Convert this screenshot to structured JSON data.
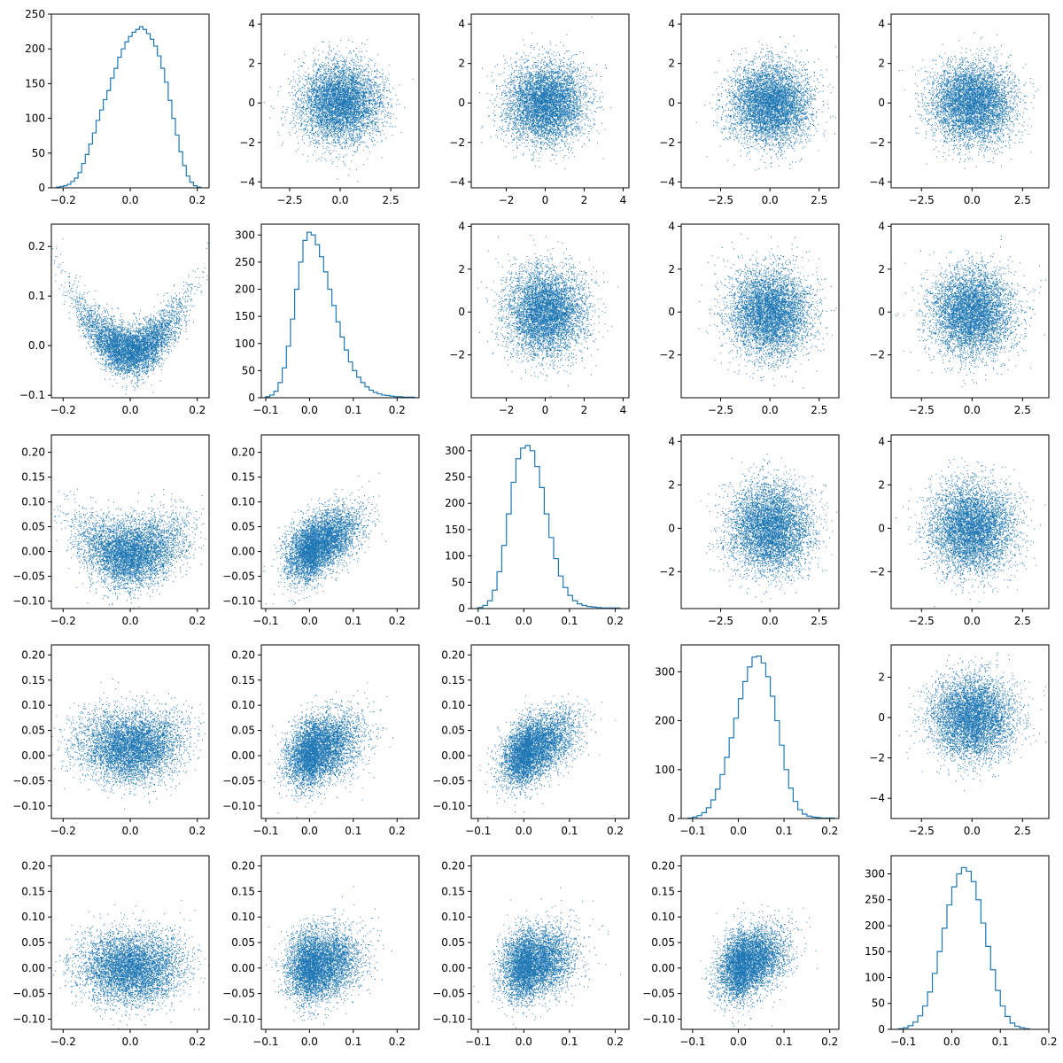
{
  "figure": {
    "rows": 5,
    "cols": 5,
    "color": "#1f77b4",
    "axis_color": "#000000"
  },
  "chart_data": [
    {
      "type": "histogram",
      "row": 0,
      "col": 0,
      "xlim": [
        -0.235,
        0.235
      ],
      "ylim": [
        0,
        250
      ],
      "x_ticks": [
        -0.2,
        0.0,
        0.2
      ],
      "x_tick_labels": [
        "−0.2",
        "0.0",
        "0.2"
      ],
      "y_ticks": [
        0,
        50,
        100,
        150,
        200,
        250
      ],
      "y_tick_labels": [
        "0",
        "50",
        "100",
        "150",
        "200",
        "250"
      ],
      "bins": {
        "x_start": -0.22,
        "x_end": 0.21,
        "counts": [
          1,
          2,
          3,
          5,
          9,
          14,
          22,
          35,
          48,
          63,
          79,
          97,
          112,
          127,
          140,
          158,
          172,
          188,
          200,
          210,
          218,
          224,
          228,
          232,
          228,
          222,
          214,
          204,
          190,
          172,
          152,
          126,
          100,
          76,
          52,
          32,
          17,
          8,
          3,
          1
        ]
      }
    },
    {
      "type": "scatter",
      "row": 0,
      "col": 1,
      "xlim": [
        -3.9,
        3.9
      ],
      "ylim": [
        -4.3,
        4.5
      ],
      "dist": "normal",
      "sx": 1.0,
      "sy": 1.0,
      "n": 5500,
      "x_ticks": [
        -2.5,
        0.0,
        2.5
      ],
      "x_tick_labels": [
        "−2.5",
        "0.0",
        "2.5"
      ],
      "y_ticks": [
        -4,
        -2,
        0,
        2,
        4
      ],
      "y_tick_labels": [
        "−4",
        "−2",
        "0",
        "2",
        "4"
      ]
    },
    {
      "type": "scatter",
      "row": 0,
      "col": 2,
      "xlim": [
        -3.8,
        4.3
      ],
      "ylim": [
        -4.3,
        4.5
      ],
      "dist": "normal",
      "sx": 1.0,
      "sy": 1.0,
      "n": 5500,
      "x_ticks": [
        -2,
        0,
        2,
        4
      ],
      "x_tick_labels": [
        "−2",
        "0",
        "2",
        "4"
      ],
      "y_ticks": [
        -4,
        -2,
        0,
        2,
        4
      ],
      "y_tick_labels": [
        "−4",
        "−2",
        "0",
        "2",
        "4"
      ]
    },
    {
      "type": "scatter",
      "row": 0,
      "col": 3,
      "xlim": [
        -4.5,
        3.5
      ],
      "ylim": [
        -4.3,
        4.5
      ],
      "dist": "normal",
      "sx": 1.0,
      "sy": 1.0,
      "n": 5500,
      "x_ticks": [
        -2.5,
        0.0,
        2.5
      ],
      "x_tick_labels": [
        "−2.5",
        "0.0",
        "2.5"
      ],
      "y_ticks": [
        -4,
        -2,
        0,
        2,
        4
      ],
      "y_tick_labels": [
        "−4",
        "−2",
        "0",
        "2",
        "4"
      ]
    },
    {
      "type": "scatter",
      "row": 0,
      "col": 4,
      "xlim": [
        -4.0,
        3.8
      ],
      "ylim": [
        -4.3,
        4.5
      ],
      "dist": "normal",
      "sx": 1.0,
      "sy": 1.0,
      "n": 5500,
      "x_ticks": [
        -2.5,
        0.0,
        2.5
      ],
      "x_tick_labels": [
        "−2.5",
        "0.0",
        "2.5"
      ],
      "y_ticks": [
        -4,
        -2,
        0,
        2,
        4
      ],
      "y_tick_labels": [
        "−4",
        "−2",
        "0",
        "2",
        "4"
      ]
    },
    {
      "type": "scatter",
      "row": 1,
      "col": 0,
      "xlim": [
        -0.235,
        0.235
      ],
      "ylim": [
        -0.105,
        0.245
      ],
      "dist": "parabola",
      "sx": 0.075,
      "a": 3.6,
      "c": -0.01,
      "noise": 0.025,
      "n": 5500,
      "x_ticks": [
        -0.2,
        0.0,
        0.2
      ],
      "x_tick_labels": [
        "−0.2",
        "0.0",
        "0.2"
      ],
      "y_ticks": [
        -0.1,
        0.0,
        0.1,
        0.2
      ],
      "y_tick_labels": [
        "−0.1",
        "0.0",
        "0.1",
        "0.2"
      ]
    },
    {
      "type": "histogram",
      "row": 1,
      "col": 1,
      "xlim": [
        -0.11,
        0.25
      ],
      "ylim": [
        0,
        320
      ],
      "x_ticks": [
        -0.1,
        0.0,
        0.1,
        0.2
      ],
      "x_tick_labels": [
        "−0.1",
        "0.0",
        "0.1",
        "0.2"
      ],
      "y_ticks": [
        0,
        50,
        100,
        150,
        200,
        250,
        300
      ],
      "y_tick_labels": [
        "0",
        "50",
        "100",
        "150",
        "200",
        "250",
        "300"
      ],
      "bins": {
        "x_start": -0.1,
        "x_end": 0.24,
        "counts": [
          2,
          5,
          12,
          28,
          55,
          95,
          145,
          200,
          250,
          290,
          305,
          300,
          282,
          260,
          232,
          200,
          170,
          140,
          112,
          88,
          66,
          50,
          38,
          28,
          20,
          14,
          10,
          7,
          5,
          4,
          3,
          2,
          2,
          1,
          1,
          1
        ]
      }
    },
    {
      "type": "scatter",
      "row": 1,
      "col": 2,
      "xlim": [
        -3.8,
        4.3
      ],
      "ylim": [
        -4.0,
        4.1
      ],
      "dist": "normal",
      "sx": 1.0,
      "sy": 1.0,
      "n": 5500,
      "x_ticks": [
        -2,
        0,
        2,
        4
      ],
      "x_tick_labels": [
        "−2",
        "0",
        "2",
        "4"
      ],
      "y_ticks": [
        -2,
        0,
        2,
        4
      ],
      "y_tick_labels": [
        "−2",
        "0",
        "2",
        "4"
      ]
    },
    {
      "type": "scatter",
      "row": 1,
      "col": 3,
      "xlim": [
        -4.5,
        3.5
      ],
      "ylim": [
        -4.0,
        4.1
      ],
      "dist": "normal",
      "sx": 1.0,
      "sy": 1.0,
      "n": 5500,
      "x_ticks": [
        -2.5,
        0.0,
        2.5
      ],
      "x_tick_labels": [
        "−2.5",
        "0.0",
        "2.5"
      ],
      "y_ticks": [
        -2,
        0,
        2,
        4
      ],
      "y_tick_labels": [
        "−2",
        "0",
        "2",
        "4"
      ]
    },
    {
      "type": "scatter",
      "row": 1,
      "col": 4,
      "xlim": [
        -4.0,
        3.8
      ],
      "ylim": [
        -4.0,
        4.1
      ],
      "dist": "normal",
      "sx": 1.0,
      "sy": 1.0,
      "n": 5500,
      "x_ticks": [
        -2.5,
        0.0,
        2.5
      ],
      "x_tick_labels": [
        "−2.5",
        "0.0",
        "2.5"
      ],
      "y_ticks": [
        -2,
        0,
        2,
        4
      ],
      "y_tick_labels": [
        "−2",
        "0",
        "2",
        "4"
      ]
    },
    {
      "type": "scatter",
      "row": 2,
      "col": 0,
      "xlim": [
        -0.235,
        0.235
      ],
      "ylim": [
        -0.115,
        0.235
      ],
      "dist": "parabola",
      "sx": 0.075,
      "a": 1.5,
      "c": -0.005,
      "noise": 0.033,
      "n": 5500,
      "x_ticks": [
        -0.2,
        0.0,
        0.2
      ],
      "x_tick_labels": [
        "−0.2",
        "0.0",
        "0.2"
      ],
      "y_ticks": [
        -0.1,
        -0.05,
        0.0,
        0.05,
        0.1,
        0.15,
        0.2
      ],
      "y_tick_labels": [
        "−0.10",
        "−0.05",
        "0.00",
        "0.05",
        "0.10",
        "0.15",
        "0.20"
      ]
    },
    {
      "type": "scatter",
      "row": 2,
      "col": 1,
      "xlim": [
        -0.11,
        0.25
      ],
      "ylim": [
        -0.115,
        0.235
      ],
      "dist": "skew",
      "sx": 0.04,
      "corr": 0.45,
      "noise": 0.03,
      "n": 5500,
      "x_ticks": [
        -0.1,
        0.0,
        0.1,
        0.2
      ],
      "x_tick_labels": [
        "−0.1",
        "0.0",
        "0.1",
        "0.2"
      ],
      "y_ticks": [
        -0.1,
        -0.05,
        0.0,
        0.05,
        0.1,
        0.15,
        0.2
      ],
      "y_tick_labels": [
        "−0.10",
        "−0.05",
        "0.00",
        "0.05",
        "0.10",
        "0.15",
        "0.20"
      ]
    },
    {
      "type": "histogram",
      "row": 2,
      "col": 2,
      "xlim": [
        -0.115,
        0.23
      ],
      "ylim": [
        0,
        330
      ],
      "x_ticks": [
        -0.1,
        0.0,
        0.1,
        0.2
      ],
      "x_tick_labels": [
        "−0.1",
        "0.0",
        "0.1",
        "0.2"
      ],
      "y_ticks": [
        0,
        50,
        100,
        150,
        200,
        250,
        300
      ],
      "y_tick_labels": [
        "0",
        "50",
        "100",
        "150",
        "200",
        "250",
        "300"
      ],
      "bins": {
        "x_start": -0.1,
        "x_end": 0.21,
        "counts": [
          2,
          6,
          15,
          35,
          70,
          120,
          180,
          240,
          285,
          305,
          310,
          300,
          270,
          230,
          180,
          135,
          95,
          62,
          40,
          25,
          15,
          9,
          6,
          4,
          3,
          2,
          1,
          1,
          1,
          1
        ]
      }
    },
    {
      "type": "scatter",
      "row": 2,
      "col": 3,
      "xlim": [
        -4.5,
        3.5
      ],
      "ylim": [
        -3.7,
        4.3
      ],
      "dist": "normal",
      "sx": 1.0,
      "sy": 1.0,
      "n": 5500,
      "x_ticks": [
        -2.5,
        0.0,
        2.5
      ],
      "x_tick_labels": [
        "−2.5",
        "0.0",
        "2.5"
      ],
      "y_ticks": [
        -2,
        0,
        2,
        4
      ],
      "y_tick_labels": [
        "−2",
        "0",
        "2",
        "4"
      ]
    },
    {
      "type": "scatter",
      "row": 2,
      "col": 4,
      "xlim": [
        -4.0,
        3.8
      ],
      "ylim": [
        -3.7,
        4.3
      ],
      "dist": "normal",
      "sx": 1.0,
      "sy": 1.0,
      "n": 5500,
      "x_ticks": [
        -2.5,
        0.0,
        2.5
      ],
      "x_tick_labels": [
        "−2.5",
        "0.0",
        "2.5"
      ],
      "y_ticks": [
        -2,
        0,
        2,
        4
      ],
      "y_tick_labels": [
        "−2",
        "0",
        "2",
        "4"
      ]
    },
    {
      "type": "scatter",
      "row": 3,
      "col": 0,
      "xlim": [
        -0.235,
        0.235
      ],
      "ylim": [
        -0.125,
        0.22
      ],
      "dist": "parabola",
      "sx": 0.075,
      "a": 0.6,
      "c": 0.015,
      "noise": 0.035,
      "n": 5500,
      "x_ticks": [
        -0.2,
        0.0,
        0.2
      ],
      "x_tick_labels": [
        "−0.2",
        "0.0",
        "0.2"
      ],
      "y_ticks": [
        -0.1,
        -0.05,
        0.0,
        0.05,
        0.1,
        0.15,
        0.2
      ],
      "y_tick_labels": [
        "−0.10",
        "−0.05",
        "0.00",
        "0.05",
        "0.10",
        "0.15",
        "0.20"
      ]
    },
    {
      "type": "scatter",
      "row": 3,
      "col": 1,
      "xlim": [
        -0.11,
        0.25
      ],
      "ylim": [
        -0.125,
        0.22
      ],
      "dist": "skew",
      "sx": 0.04,
      "corr": 0.3,
      "noise": 0.032,
      "n": 5500,
      "x_ticks": [
        -0.1,
        0.0,
        0.1,
        0.2
      ],
      "x_tick_labels": [
        "−0.1",
        "0.0",
        "0.1",
        "0.2"
      ],
      "y_ticks": [
        -0.1,
        -0.05,
        0.0,
        0.05,
        0.1,
        0.15,
        0.2
      ],
      "y_tick_labels": [
        "−0.10",
        "−0.05",
        "0.00",
        "0.05",
        "0.10",
        "0.15",
        "0.20"
      ]
    },
    {
      "type": "scatter",
      "row": 3,
      "col": 2,
      "xlim": [
        -0.115,
        0.23
      ],
      "ylim": [
        -0.125,
        0.22
      ],
      "dist": "skew",
      "sx": 0.038,
      "corr": 0.45,
      "noise": 0.03,
      "n": 5500,
      "x_ticks": [
        -0.1,
        0.0,
        0.1,
        0.2
      ],
      "x_tick_labels": [
        "−0.1",
        "0.0",
        "0.1",
        "0.2"
      ],
      "y_ticks": [
        -0.1,
        -0.05,
        0.0,
        0.05,
        0.1,
        0.15,
        0.2
      ],
      "y_tick_labels": [
        "−0.10",
        "−0.05",
        "0.00",
        "0.05",
        "0.10",
        "0.15",
        "0.20"
      ]
    },
    {
      "type": "histogram",
      "row": 3,
      "col": 3,
      "xlim": [
        -0.125,
        0.22
      ],
      "ylim": [
        0,
        355
      ],
      "x_ticks": [
        -0.1,
        0.0,
        0.1,
        0.2
      ],
      "x_tick_labels": [
        "−0.1",
        "0.0",
        "0.1",
        "0.2"
      ],
      "y_ticks": [
        0,
        100,
        200,
        300
      ],
      "y_tick_labels": [
        "0",
        "100",
        "200",
        "300"
      ],
      "bins": {
        "x_start": -0.11,
        "x_end": 0.21,
        "counts": [
          1,
          3,
          6,
          12,
          22,
          38,
          60,
          90,
          125,
          165,
          205,
          245,
          280,
          310,
          330,
          332,
          318,
          290,
          250,
          200,
          150,
          100,
          62,
          35,
          18,
          9,
          5,
          3,
          2,
          1,
          1,
          1
        ]
      }
    },
    {
      "type": "scatter",
      "row": 3,
      "col": 4,
      "xlim": [
        -4.0,
        3.8
      ],
      "ylim": [
        -5.0,
        3.6
      ],
      "dist": "normal",
      "sx": 1.0,
      "sy": 1.0,
      "n": 5500,
      "x_ticks": [
        -2.5,
        0.0,
        2.5
      ],
      "x_tick_labels": [
        "−2.5",
        "0.0",
        "2.5"
      ],
      "y_ticks": [
        -4,
        -2,
        0,
        2
      ],
      "y_tick_labels": [
        "−4",
        "−2",
        "0",
        "2"
      ]
    },
    {
      "type": "scatter",
      "row": 4,
      "col": 0,
      "xlim": [
        -0.235,
        0.235
      ],
      "ylim": [
        -0.12,
        0.22
      ],
      "dist": "parabola",
      "sx": 0.075,
      "a": 0.3,
      "c": 0.0,
      "noise": 0.033,
      "n": 5500,
      "x_ticks": [
        -0.2,
        0.0,
        0.2
      ],
      "x_tick_labels": [
        "−0.2",
        "0.0",
        "0.2"
      ],
      "y_ticks": [
        -0.1,
        -0.05,
        0.0,
        0.05,
        0.1,
        0.15,
        0.2
      ],
      "y_tick_labels": [
        "−0.10",
        "−0.05",
        "0.00",
        "0.05",
        "0.10",
        "0.15",
        "0.20"
      ]
    },
    {
      "type": "scatter",
      "row": 4,
      "col": 1,
      "xlim": [
        -0.11,
        0.25
      ],
      "ylim": [
        -0.12,
        0.22
      ],
      "dist": "skew",
      "sx": 0.04,
      "corr": 0.15,
      "noise": 0.033,
      "n": 5500,
      "x_ticks": [
        -0.1,
        0.0,
        0.1,
        0.2
      ],
      "x_tick_labels": [
        "−0.1",
        "0.0",
        "0.1",
        "0.2"
      ],
      "y_ticks": [
        -0.1,
        -0.05,
        0.0,
        0.05,
        0.1,
        0.15,
        0.2
      ],
      "y_tick_labels": [
        "−0.10",
        "−0.05",
        "0.00",
        "0.05",
        "0.10",
        "0.15",
        "0.20"
      ]
    },
    {
      "type": "scatter",
      "row": 4,
      "col": 2,
      "xlim": [
        -0.115,
        0.23
      ],
      "ylim": [
        -0.12,
        0.22
      ],
      "dist": "skew",
      "sx": 0.038,
      "corr": 0.2,
      "noise": 0.033,
      "n": 5500,
      "x_ticks": [
        -0.1,
        0.0,
        0.1,
        0.2
      ],
      "x_tick_labels": [
        "−0.1",
        "0.0",
        "0.1",
        "0.2"
      ],
      "y_ticks": [
        -0.1,
        -0.05,
        0.0,
        0.05,
        0.1,
        0.15,
        0.2
      ],
      "y_tick_labels": [
        "−0.10",
        "−0.05",
        "0.00",
        "0.05",
        "0.10",
        "0.15",
        "0.20"
      ]
    },
    {
      "type": "scatter",
      "row": 4,
      "col": 3,
      "xlim": [
        -0.125,
        0.22
      ],
      "ylim": [
        -0.12,
        0.22
      ],
      "dist": "skew",
      "sx": 0.035,
      "corr": 0.3,
      "noise": 0.032,
      "n": 5500,
      "x_ticks": [
        -0.1,
        0.0,
        0.1,
        0.2
      ],
      "x_tick_labels": [
        "−0.1",
        "0.0",
        "0.1",
        "0.2"
      ],
      "y_ticks": [
        -0.1,
        -0.05,
        0.0,
        0.05,
        0.1,
        0.15,
        0.2
      ],
      "y_tick_labels": [
        "−0.10",
        "−0.05",
        "0.00",
        "0.05",
        "0.10",
        "0.15",
        "0.20"
      ]
    },
    {
      "type": "histogram",
      "row": 4,
      "col": 4,
      "xlim": [
        -0.125,
        0.2
      ],
      "ylim": [
        0,
        335
      ],
      "x_ticks": [
        -0.1,
        0.0,
        0.1,
        0.2
      ],
      "x_tick_labels": [
        "−0.1",
        "0.0",
        "0.1",
        "0.2"
      ],
      "y_ticks": [
        0,
        50,
        100,
        150,
        200,
        250,
        300
      ],
      "y_tick_labels": [
        "0",
        "50",
        "100",
        "150",
        "200",
        "250",
        "300"
      ],
      "bins": {
        "x_start": -0.11,
        "x_end": 0.16,
        "counts": [
          1,
          3,
          7,
          14,
          26,
          45,
          72,
          108,
          150,
          195,
          240,
          275,
          300,
          312,
          305,
          285,
          250,
          205,
          160,
          115,
          75,
          45,
          25,
          12,
          6,
          3,
          1
        ]
      }
    }
  ]
}
